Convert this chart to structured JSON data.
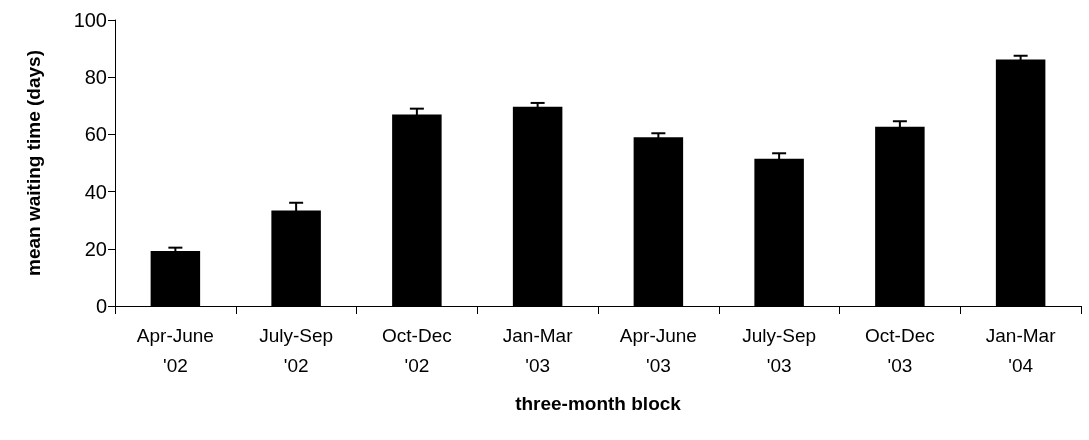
{
  "chart_data": {
    "type": "bar",
    "xlabel": "three-month block",
    "ylabel": "mean waiting time (days)",
    "categories": [
      "Apr-June\n'02",
      "July-Sep\n'02",
      "Oct-Dec\n'02",
      "Jan-Mar\n'03",
      "Apr-June\n'03",
      "July-Sep\n'03",
      "Oct-Dec\n'03",
      "Jan-Mar\n'04"
    ],
    "values": [
      19.2,
      33.4,
      67.0,
      69.7,
      59.0,
      51.5,
      62.7,
      86.2
    ],
    "errors": [
      1.2,
      2.7,
      2.0,
      1.3,
      1.4,
      1.9,
      1.9,
      1.3
    ],
    "color": "#000000",
    "ylim": [
      0,
      100
    ],
    "yticks": [
      0,
      20,
      40,
      60,
      80,
      100
    ],
    "grid": false
  }
}
